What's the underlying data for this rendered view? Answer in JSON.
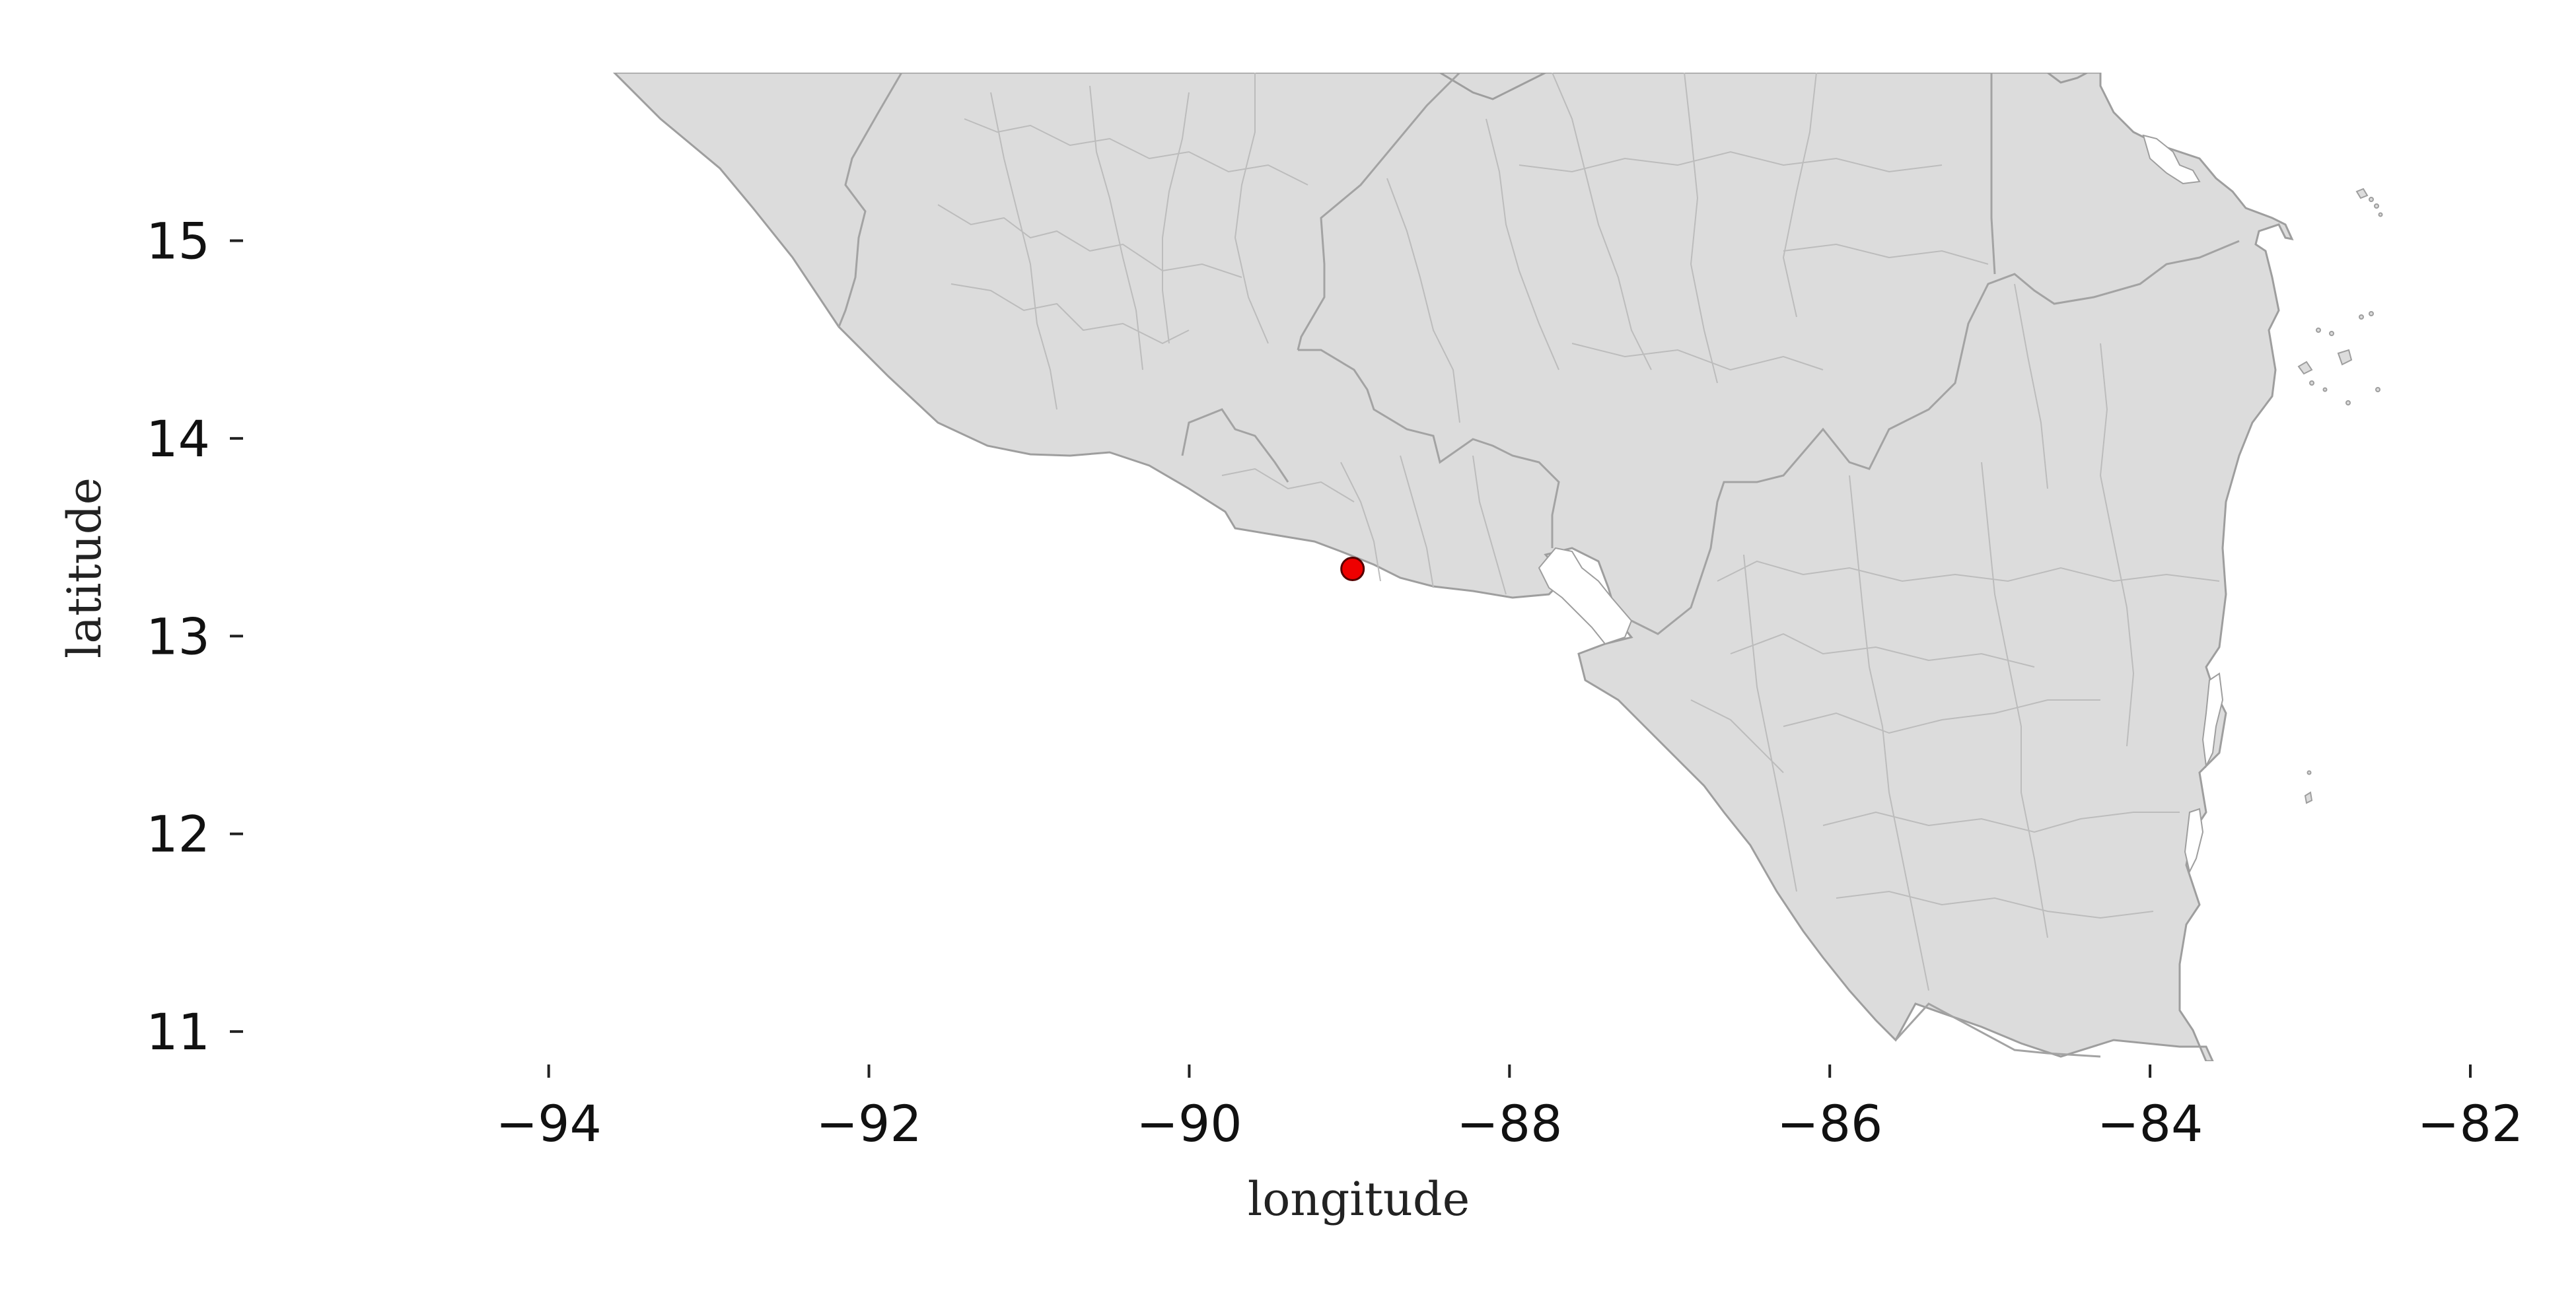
{
  "map": {
    "xlabel": "longitude",
    "ylabel": "latitude",
    "x_ticks": [
      -94,
      -92,
      -90,
      -88,
      -86,
      -84,
      -82
    ],
    "y_ticks": [
      11,
      12,
      13,
      14,
      15
    ],
    "xlim": [
      -95.9,
      -82
    ],
    "ylim": [
      10.85,
      15.85
    ],
    "colors": {
      "land": "#dcdcdc",
      "border": "#9e9e9e",
      "inner_border": "#bcbcbc",
      "marker": "#ee0000",
      "marker_edge": "#550000",
      "background": "#ffffff"
    },
    "marker": {
      "lon": -88.98,
      "lat": 13.34
    }
  }
}
